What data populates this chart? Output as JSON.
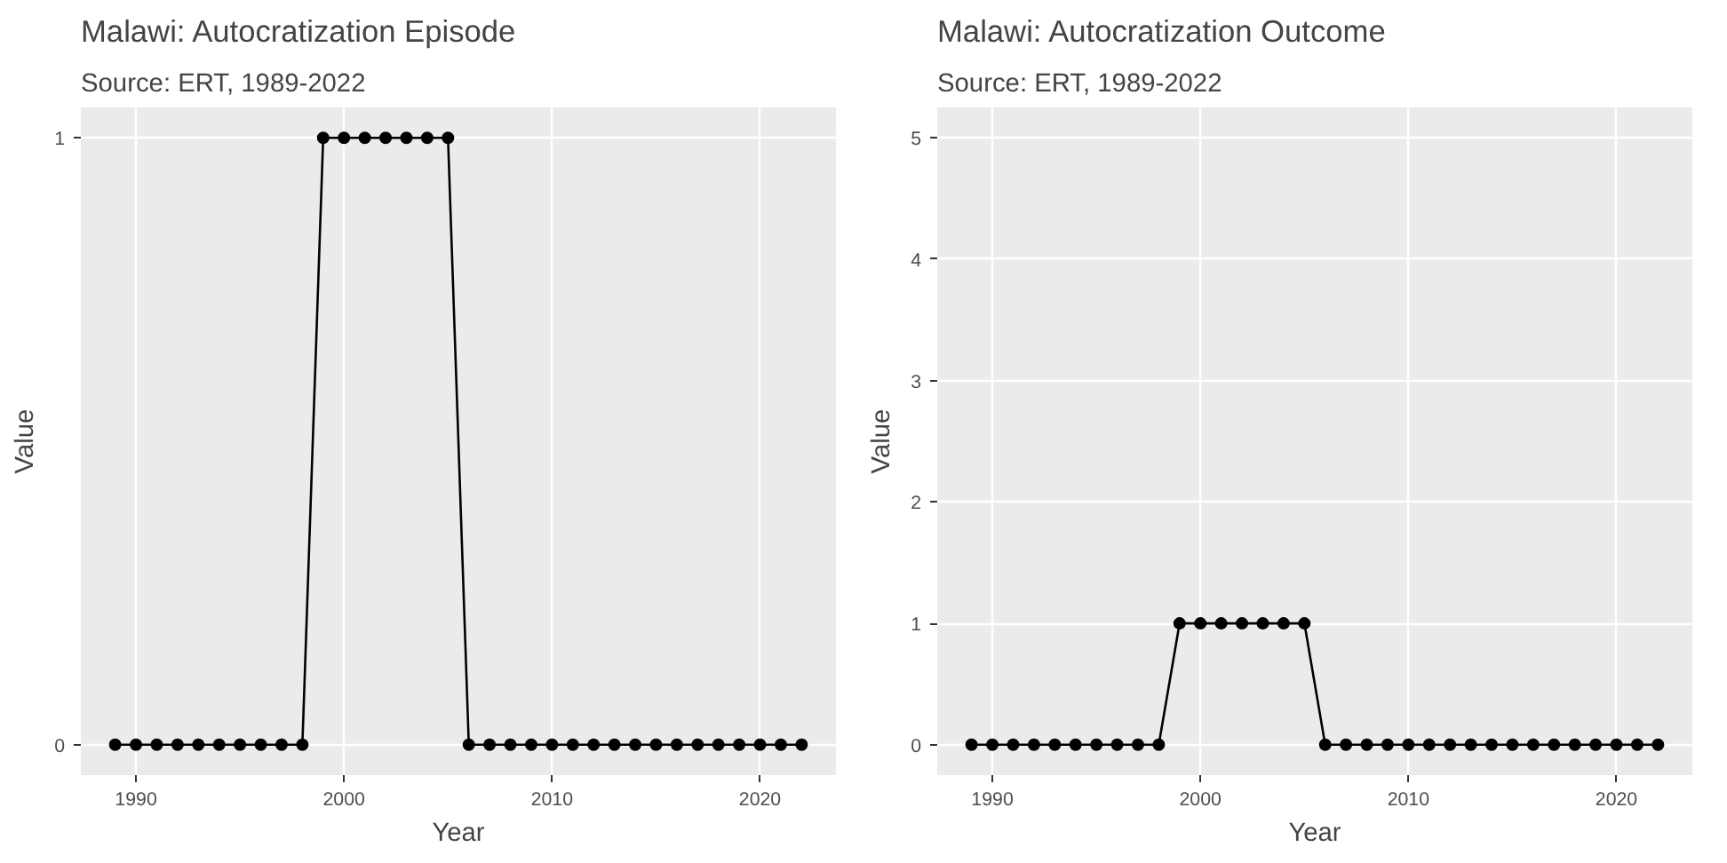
{
  "chart_data": [
    {
      "type": "line",
      "title": "Malawi: Autocratization Episode",
      "subtitle": "Source: ERT, 1989-2022",
      "xlabel": "Year",
      "ylabel": "Value",
      "x": [
        1989,
        1990,
        1991,
        1992,
        1993,
        1994,
        1995,
        1996,
        1997,
        1998,
        1999,
        2000,
        2001,
        2002,
        2003,
        2004,
        2005,
        2006,
        2007,
        2008,
        2009,
        2010,
        2011,
        2012,
        2013,
        2014,
        2015,
        2016,
        2017,
        2018,
        2019,
        2020,
        2021,
        2022
      ],
      "series": [
        {
          "color": "#000000",
          "values": [
            0,
            0,
            0,
            0,
            0,
            0,
            0,
            0,
            0,
            0,
            1,
            1,
            1,
            1,
            1,
            1,
            1,
            0,
            0,
            0,
            0,
            0,
            0,
            0,
            0,
            0,
            0,
            0,
            0,
            0,
            0,
            0,
            0,
            0
          ]
        }
      ],
      "xlim": [
        1987.35,
        2023.65
      ],
      "xticks": [
        1990,
        2000,
        2010,
        2020
      ],
      "ylim": [
        -0.05,
        1.05
      ],
      "yticks": [
        0,
        1
      ],
      "grid": true,
      "marker": "circle",
      "line_style": "solid"
    },
    {
      "type": "line",
      "title": "Malawi: Autocratization Outcome",
      "subtitle": "Source: ERT, 1989-2022",
      "xlabel": "Year",
      "ylabel": "Value",
      "x": [
        1989,
        1990,
        1991,
        1992,
        1993,
        1994,
        1995,
        1996,
        1997,
        1998,
        1999,
        2000,
        2001,
        2002,
        2003,
        2004,
        2005,
        2006,
        2007,
        2008,
        2009,
        2010,
        2011,
        2012,
        2013,
        2014,
        2015,
        2016,
        2017,
        2018,
        2019,
        2020,
        2021,
        2022
      ],
      "series": [
        {
          "color": "#000000",
          "values": [
            0,
            0,
            0,
            0,
            0,
            0,
            0,
            0,
            0,
            0,
            1,
            1,
            1,
            1,
            1,
            1,
            1,
            0,
            0,
            0,
            0,
            0,
            0,
            0,
            0,
            0,
            0,
            0,
            0,
            0,
            0,
            0,
            0,
            0
          ]
        }
      ],
      "xlim": [
        1987.35,
        2023.65
      ],
      "xticks": [
        1990,
        2000,
        2010,
        2020
      ],
      "ylim": [
        -0.25,
        5.25
      ],
      "yticks": [
        0,
        1,
        2,
        3,
        4,
        5
      ],
      "grid": true,
      "marker": "circle",
      "line_style": "solid"
    }
  ]
}
